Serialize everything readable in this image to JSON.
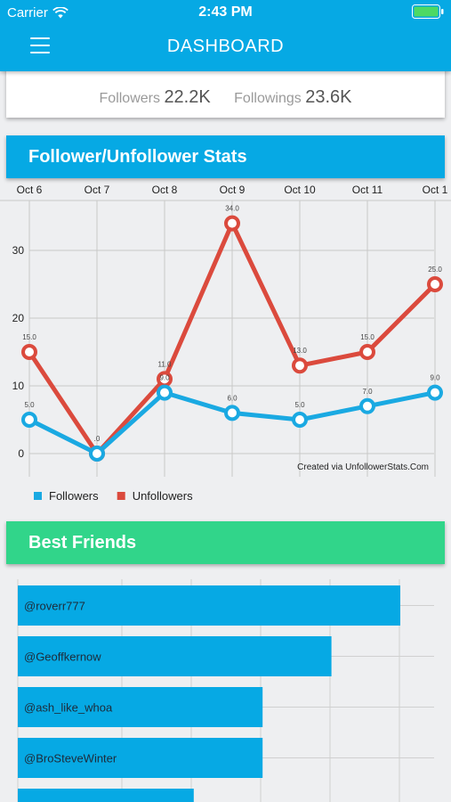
{
  "status_bar": {
    "carrier": "Carrier",
    "time": "2:43 PM"
  },
  "nav": {
    "title": "DASHBOARD",
    "menu_icon": "hamburger-menu-icon"
  },
  "profile": {
    "followers_label": "Followers",
    "followers_value": "22.2K",
    "followings_label": "Followings",
    "followings_value": "23.6K"
  },
  "stats_section": {
    "title": "Follower/Unfollower Stats"
  },
  "chart_data": {
    "type": "line",
    "categories": [
      "Oct 6",
      "Oct 7",
      "Oct 8",
      "Oct 9",
      "Oct 10",
      "Oct 11",
      "Oct 1"
    ],
    "series": [
      {
        "name": "Followers",
        "color": "#1aa9e2",
        "values": [
          5,
          0,
          9,
          6,
          5,
          7,
          9
        ],
        "labels": [
          "5.0",
          ".0",
          "9.0",
          "6.0",
          "5.0",
          "7.0",
          "9.0"
        ]
      },
      {
        "name": "Unfollowers",
        "color": "#db4a3d",
        "values": [
          15,
          0,
          11,
          34,
          13,
          15,
          25
        ],
        "labels": [
          "15.0",
          "",
          "11.0",
          "34.0",
          "13.0",
          "15.0",
          "25.0"
        ]
      }
    ],
    "yticks": [
      "0",
      "10",
      "20",
      "30"
    ],
    "ylim": [
      -2,
      38
    ],
    "watermark": "Created via UnfollowerStats.Com",
    "legend_position": "bottom-left",
    "grid": true
  },
  "friends_section": {
    "title": "Best Friends",
    "bar_color": "#06a9e4",
    "items": [
      {
        "handle": "@roverr777",
        "value": 100
      },
      {
        "handle": "@Geoffkernow",
        "value": 82
      },
      {
        "handle": "@ash_like_whoa",
        "value": 64
      },
      {
        "handle": "@BroSteveWinter",
        "value": 64
      },
      {
        "handle": "",
        "value": 46
      }
    ]
  }
}
